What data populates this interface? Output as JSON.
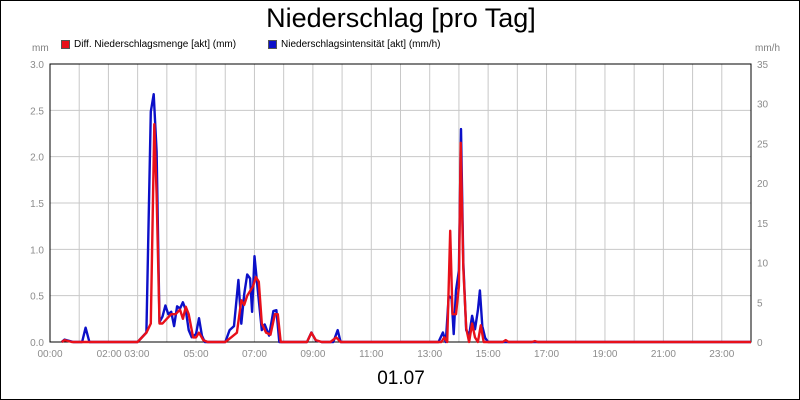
{
  "chart_data": {
    "type": "line",
    "title": "Niederschlag [pro Tag]",
    "y_left_unit": "mm",
    "y_right_unit": "mm/h",
    "xlabel": "01.07",
    "x_range_hours": [
      0,
      24
    ],
    "ylim_left": [
      0,
      3.0
    ],
    "ylim_right": [
      0,
      35
    ],
    "x_tick_labels": [
      "00:00",
      "02:00 03:00",
      "05:00",
      "07:00",
      "09:00",
      "11:00",
      "13:00",
      "15:00",
      "17:00",
      "19:00",
      "21:00",
      "23:00"
    ],
    "y_left_ticks": [
      "0.0",
      "0.5",
      "1.0",
      "1.5",
      "2.0",
      "2.5",
      "3.0"
    ],
    "y_right_ticks": [
      "0",
      "5",
      "10",
      "15",
      "20",
      "25",
      "30",
      "35"
    ],
    "grid": true,
    "legend_position": "top-left",
    "series": [
      {
        "name": "Diff. Niederschlagsmenge [akt] (mm)",
        "color": "#e8101a",
        "axis": "left",
        "points": [
          [
            0.4,
            0.0
          ],
          [
            0.5,
            0.02
          ],
          [
            0.75,
            0.0
          ],
          [
            1.2,
            0.0
          ],
          [
            3.0,
            0.0
          ],
          [
            3.3,
            0.1
          ],
          [
            3.45,
            0.2
          ],
          [
            3.57,
            2.35
          ],
          [
            3.65,
            1.6
          ],
          [
            3.75,
            0.2
          ],
          [
            3.85,
            0.2
          ],
          [
            4.0,
            0.25
          ],
          [
            4.15,
            0.3
          ],
          [
            4.3,
            0.3
          ],
          [
            4.45,
            0.35
          ],
          [
            4.55,
            0.25
          ],
          [
            4.65,
            0.38
          ],
          [
            4.75,
            0.3
          ],
          [
            4.9,
            0.05
          ],
          [
            5.0,
            0.05
          ],
          [
            5.1,
            0.1
          ],
          [
            5.25,
            0.02
          ],
          [
            5.4,
            0.0
          ],
          [
            6.0,
            0.0
          ],
          [
            6.2,
            0.05
          ],
          [
            6.4,
            0.1
          ],
          [
            6.55,
            0.45
          ],
          [
            6.65,
            0.4
          ],
          [
            6.75,
            0.5
          ],
          [
            6.85,
            0.55
          ],
          [
            6.95,
            0.6
          ],
          [
            7.05,
            0.7
          ],
          [
            7.15,
            0.65
          ],
          [
            7.25,
            0.2
          ],
          [
            7.4,
            0.1
          ],
          [
            7.55,
            0.08
          ],
          [
            7.7,
            0.3
          ],
          [
            7.8,
            0.3
          ],
          [
            7.9,
            0.0
          ],
          [
            8.8,
            0.0
          ],
          [
            8.95,
            0.1
          ],
          [
            9.1,
            0.02
          ],
          [
            9.3,
            0.0
          ],
          [
            9.6,
            0.0
          ],
          [
            9.8,
            0.05
          ],
          [
            9.95,
            0.0
          ],
          [
            13.4,
            0.0
          ],
          [
            13.5,
            0.05
          ],
          [
            13.6,
            0.0
          ],
          [
            13.7,
            1.2
          ],
          [
            13.78,
            0.3
          ],
          [
            13.9,
            0.3
          ],
          [
            14.0,
            0.6
          ],
          [
            14.06,
            2.15
          ],
          [
            14.15,
            0.8
          ],
          [
            14.25,
            0.15
          ],
          [
            14.35,
            0.0
          ],
          [
            14.45,
            0.2
          ],
          [
            14.55,
            0.05
          ],
          [
            14.65,
            0.0
          ],
          [
            14.75,
            0.18
          ],
          [
            14.85,
            0.0
          ],
          [
            15.0,
            0.0
          ],
          [
            15.5,
            0.0
          ],
          [
            15.6,
            0.02
          ],
          [
            15.7,
            0.0
          ],
          [
            16.5,
            0.0
          ],
          [
            16.6,
            0.01
          ],
          [
            16.7,
            0.0
          ],
          [
            24.0,
            0.0
          ]
        ]
      },
      {
        "name": "Niederschlagsintensität [akt] (mm/h)",
        "color": "#0c10c8",
        "axis": "right",
        "points": [
          [
            0.4,
            0.0
          ],
          [
            0.5,
            0.3
          ],
          [
            0.8,
            0.0
          ],
          [
            1.1,
            0.0
          ],
          [
            1.22,
            1.8
          ],
          [
            1.35,
            0.0
          ],
          [
            3.0,
            0.0
          ],
          [
            3.3,
            1.2
          ],
          [
            3.45,
            29.0
          ],
          [
            3.55,
            31.2
          ],
          [
            3.65,
            24.0
          ],
          [
            3.75,
            2.5
          ],
          [
            3.85,
            3.2
          ],
          [
            3.95,
            4.6
          ],
          [
            4.05,
            3.5
          ],
          [
            4.15,
            3.8
          ],
          [
            4.25,
            2.0
          ],
          [
            4.35,
            4.5
          ],
          [
            4.45,
            4.2
          ],
          [
            4.55,
            5.0
          ],
          [
            4.65,
            4.0
          ],
          [
            4.75,
            1.5
          ],
          [
            4.85,
            0.6
          ],
          [
            5.0,
            1.0
          ],
          [
            5.1,
            3.0
          ],
          [
            5.2,
            0.8
          ],
          [
            5.3,
            0.0
          ],
          [
            6.0,
            0.0
          ],
          [
            6.15,
            1.5
          ],
          [
            6.3,
            2.0
          ],
          [
            6.45,
            7.8
          ],
          [
            6.55,
            2.3
          ],
          [
            6.65,
            6.0
          ],
          [
            6.75,
            8.5
          ],
          [
            6.85,
            8.0
          ],
          [
            6.92,
            3.8
          ],
          [
            7.0,
            10.8
          ],
          [
            7.1,
            7.0
          ],
          [
            7.25,
            1.5
          ],
          [
            7.35,
            2.2
          ],
          [
            7.5,
            0.8
          ],
          [
            7.65,
            3.9
          ],
          [
            7.75,
            4.0
          ],
          [
            7.85,
            0.0
          ],
          [
            8.8,
            0.0
          ],
          [
            8.95,
            1.2
          ],
          [
            9.1,
            0.2
          ],
          [
            9.3,
            0.0
          ],
          [
            9.7,
            0.0
          ],
          [
            9.85,
            1.5
          ],
          [
            9.95,
            0.0
          ],
          [
            13.3,
            0.0
          ],
          [
            13.45,
            1.2
          ],
          [
            13.55,
            0.0
          ],
          [
            13.65,
            5.8
          ],
          [
            13.75,
            5.5
          ],
          [
            13.82,
            1.0
          ],
          [
            13.9,
            6.5
          ],
          [
            14.0,
            9.0
          ],
          [
            14.07,
            26.8
          ],
          [
            14.15,
            10.0
          ],
          [
            14.25,
            1.5
          ],
          [
            14.35,
            0.8
          ],
          [
            14.45,
            3.3
          ],
          [
            14.55,
            1.6
          ],
          [
            14.65,
            4.0
          ],
          [
            14.72,
            6.5
          ],
          [
            14.8,
            2.0
          ],
          [
            14.9,
            0.5
          ],
          [
            15.0,
            0.0
          ],
          [
            24.0,
            0.0
          ]
        ]
      }
    ]
  }
}
